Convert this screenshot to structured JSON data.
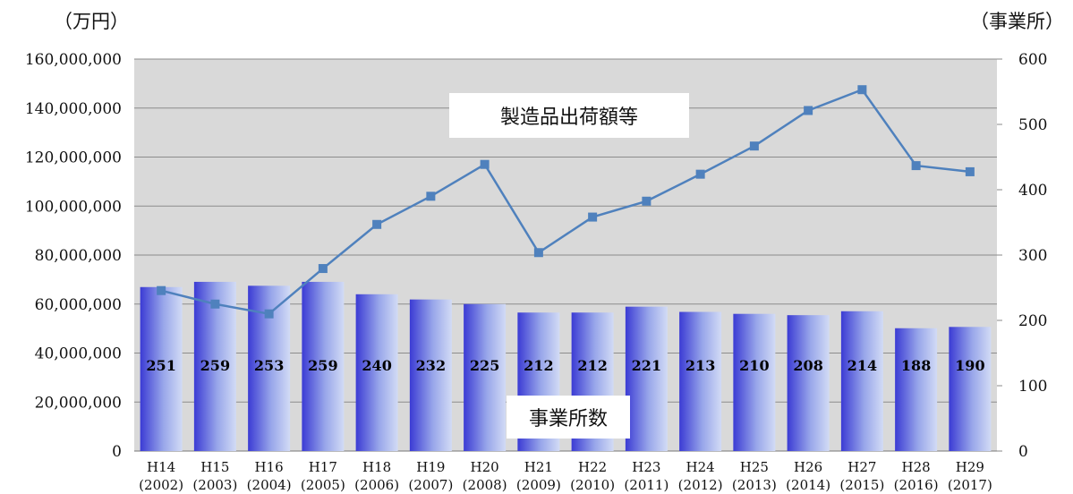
{
  "units": {
    "left": "（万円）",
    "right": "（事業所）"
  },
  "chart_data": {
    "type": "bar",
    "categories_top": [
      "H14",
      "H15",
      "H16",
      "H17",
      "H18",
      "H19",
      "H20",
      "H21",
      "H22",
      "H23",
      "H24",
      "H25",
      "H26",
      "H27",
      "H28",
      "H29"
    ],
    "categories_bottom": [
      "(2002)",
      "(2003)",
      "(2004)",
      "(2005)",
      "(2006)",
      "(2007)",
      "(2008)",
      "(2009)",
      "(2010)",
      "(2011)",
      "(2012)",
      "(2013)",
      "(2014)",
      "(2015)",
      "(2016)",
      "(2017)"
    ],
    "series": [
      {
        "name": "事業所数",
        "type": "bar",
        "axis": "right",
        "values": [
          251,
          259,
          253,
          259,
          240,
          232,
          225,
          212,
          212,
          221,
          213,
          210,
          208,
          214,
          188,
          190
        ]
      },
      {
        "name": "製造品出荷額等",
        "type": "line",
        "axis": "left",
        "values": [
          65500000,
          60000000,
          56000000,
          74500000,
          92500000,
          104000000,
          117000000,
          81000000,
          95500000,
          102000000,
          113000000,
          124500000,
          139000000,
          147500000,
          116500000,
          114000000
        ]
      }
    ],
    "y_left": {
      "range": [
        0,
        160000000
      ],
      "ticks": [
        "0",
        "20,000,000",
        "40,000,000",
        "60,000,000",
        "80,000,000",
        "100,000,000",
        "120,000,000",
        "140,000,000",
        "160,000,000"
      ]
    },
    "y_right": {
      "range": [
        0,
        600
      ],
      "ticks": [
        "0",
        "100",
        "200",
        "300",
        "400",
        "500",
        "600"
      ]
    },
    "grid": true,
    "colors": {
      "plot_bg": "#d9d9d9",
      "bar_dark": "#3f3fd6",
      "bar_light": "#c9d3f2",
      "line": "#4f81bd"
    }
  }
}
